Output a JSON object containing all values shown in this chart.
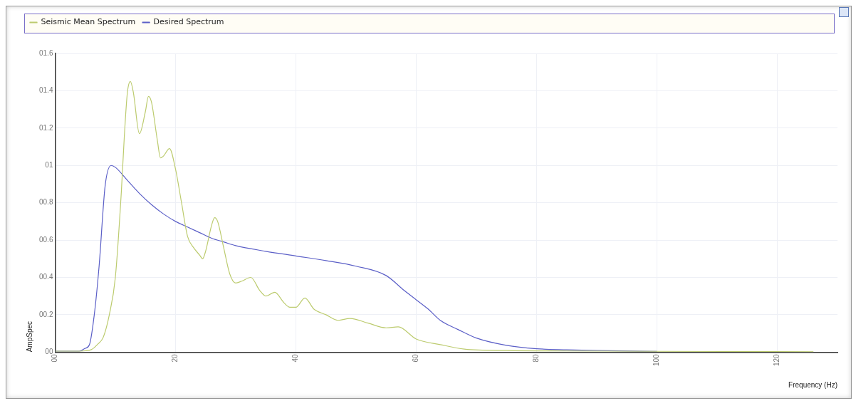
{
  "chart_data": {
    "type": "line",
    "xlabel": "Frequency (Hz)",
    "ylabel": "AmpSpec",
    "xlim": [
      0,
      130
    ],
    "ylim": [
      0,
      1.6
    ],
    "xticks": [
      {
        "value": 0,
        "label": "00"
      },
      20,
      40,
      60,
      80,
      100,
      120
    ],
    "yticks": [
      {
        "value": 0,
        "label": "00"
      },
      {
        "value": 0.2,
        "label": "00.2"
      },
      {
        "value": 0.4,
        "label": "00.4"
      },
      {
        "value": 0.6,
        "label": "00.6"
      },
      {
        "value": 0.8,
        "label": "00.8"
      },
      {
        "value": 1,
        "label": "01"
      },
      {
        "value": 1.2,
        "label": "01.2"
      },
      {
        "value": 1.4,
        "label": "01.4"
      },
      {
        "value": 1.6,
        "label": "01.6"
      }
    ],
    "grid": true,
    "legend": "top left",
    "marker": "none",
    "line_style": "solid",
    "series": [
      {
        "name": "Seismic Mean Spectrum",
        "color": "#bccb6e",
        "x": [
          0,
          3,
          5,
          6,
          7,
          8,
          9,
          10,
          11,
          11.5,
          12,
          12.5,
          13,
          14,
          15,
          15.5,
          16,
          17,
          17.5,
          18,
          19,
          20,
          21,
          22,
          23,
          24,
          24.5,
          25,
          26,
          26.5,
          27,
          28,
          29,
          30,
          31,
          32.5,
          34,
          35,
          36.5,
          38,
          39,
          40,
          41.5,
          43,
          45,
          47,
          49,
          52,
          55,
          57,
          60,
          64,
          68,
          75,
          85,
          100,
          126
        ],
        "values": [
          0.005,
          0.005,
          0.007,
          0.013,
          0.04,
          0.08,
          0.2,
          0.4,
          0.86,
          1.16,
          1.39,
          1.45,
          1.39,
          1.17,
          1.29,
          1.37,
          1.34,
          1.13,
          1.04,
          1.05,
          1.09,
          0.98,
          0.8,
          0.62,
          0.56,
          0.52,
          0.5,
          0.54,
          0.68,
          0.72,
          0.7,
          0.56,
          0.42,
          0.37,
          0.38,
          0.4,
          0.33,
          0.3,
          0.32,
          0.265,
          0.24,
          0.24,
          0.29,
          0.23,
          0.2,
          0.17,
          0.18,
          0.155,
          0.13,
          0.135,
          0.07,
          0.04,
          0.016,
          0.008,
          0.006,
          0.004,
          0.002
        ]
      },
      {
        "name": "Desired Spectrum",
        "color": "#5b5fc7",
        "x": [
          0,
          4,
          5,
          5.7,
          6.5,
          7.3,
          8.3,
          9.3,
          10,
          12,
          14,
          16,
          18,
          20,
          22,
          24,
          26,
          28,
          30,
          35,
          40,
          45,
          50,
          55,
          58,
          60,
          62,
          64,
          67,
          70,
          75,
          80,
          85,
          90,
          100
        ],
        "values": [
          0.005,
          0.005,
          0.02,
          0.04,
          0.2,
          0.46,
          0.89,
          1.0,
          0.99,
          0.92,
          0.85,
          0.79,
          0.74,
          0.7,
          0.67,
          0.64,
          0.61,
          0.59,
          0.57,
          0.54,
          0.515,
          0.49,
          0.46,
          0.41,
          0.33,
          0.28,
          0.23,
          0.17,
          0.12,
          0.075,
          0.036,
          0.018,
          0.012,
          0.008,
          0.004
        ]
      }
    ]
  }
}
